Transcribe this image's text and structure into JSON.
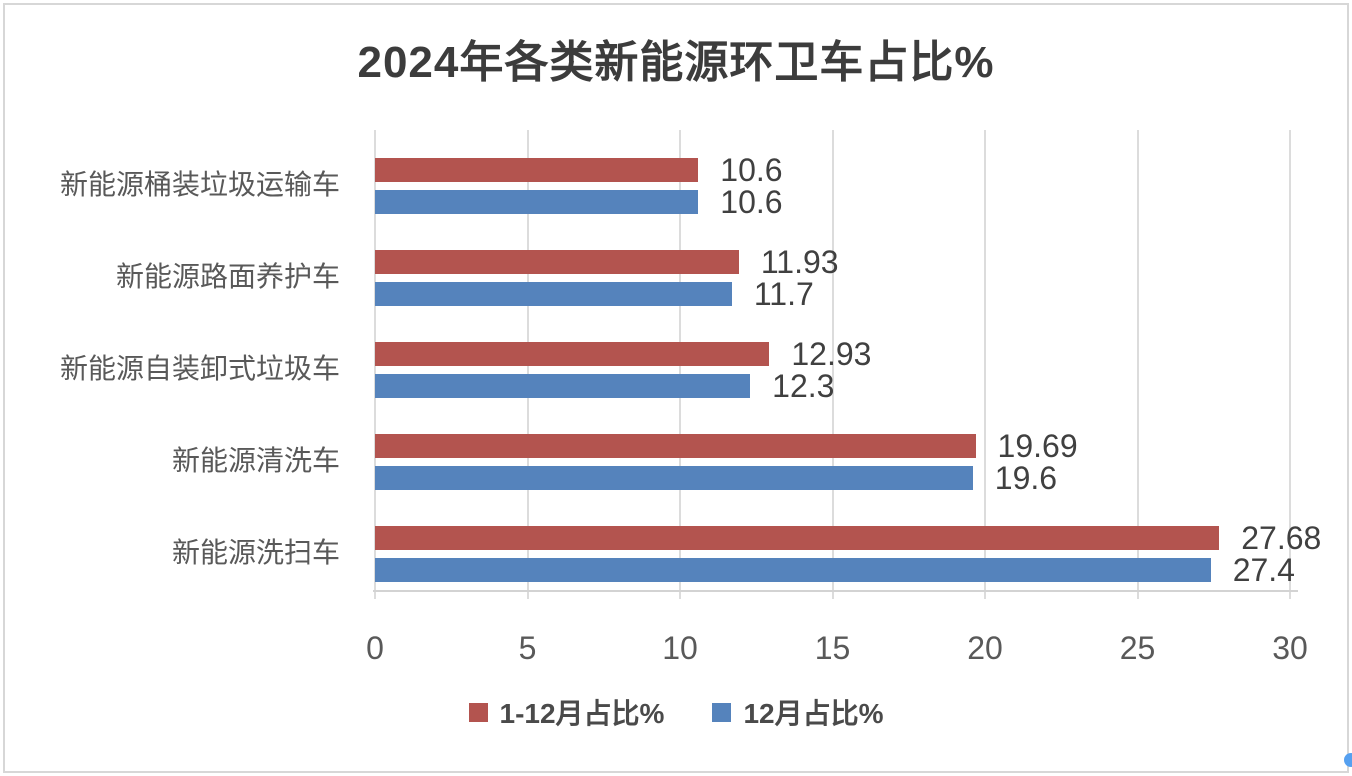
{
  "page": {
    "background": "#ffffff",
    "border_color": "#d7d7d7"
  },
  "chart_data": {
    "type": "bar",
    "orientation": "horizontal",
    "title": "2024年各类新能源环卫车占比%",
    "categories": [
      "新能源桶装垃圾运输车",
      "新能源路面养护车",
      "新能源自装卸式垃圾车",
      "新能源清洗车",
      "新能源洗扫车"
    ],
    "series": [
      {
        "name": "1-12月占比%",
        "color": "#b3544f",
        "values": [
          10.6,
          11.93,
          12.93,
          19.69,
          27.68
        ]
      },
      {
        "name": "12月占比%",
        "color": "#5583bc",
        "values": [
          10.6,
          11.7,
          12.3,
          19.6,
          27.4
        ]
      }
    ],
    "value_labels": [
      [
        "10.6",
        "11.93",
        "12.93",
        "19.69",
        "27.68"
      ],
      [
        "10.6",
        "11.7",
        "12.3",
        "19.6",
        "27.4"
      ]
    ],
    "x_ticks": [
      "0",
      "5",
      "10",
      "15",
      "20",
      "25",
      "30"
    ],
    "xlim": [
      0,
      30
    ],
    "grid": "vertical major gridlines",
    "gridline_color": "#dcdcdc",
    "axis_line_color": "#d3d3d3",
    "axis_text_color": "#595959",
    "value_label_color": "#404040",
    "title_color": "#3c3c3c",
    "legend_position": "bottom-center",
    "data_labels": true
  },
  "artifacts": {
    "resize_handle_color": "#55a0f0"
  }
}
